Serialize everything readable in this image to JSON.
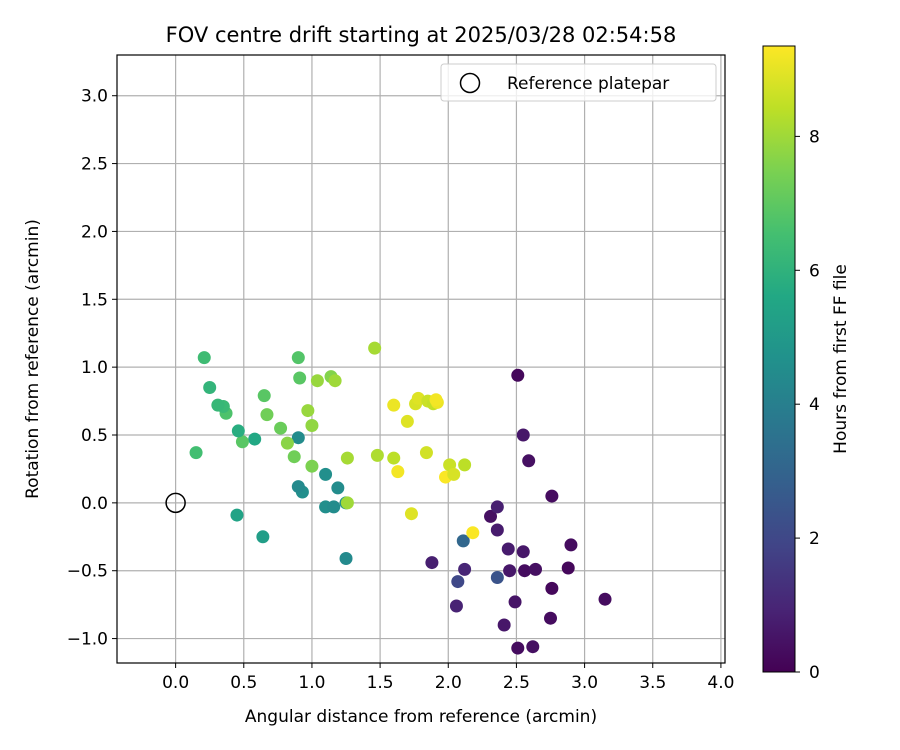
{
  "chart_data": {
    "type": "scatter",
    "title": "FOV centre drift starting at 2025/03/28 02:54:58",
    "xlabel": "Angular distance from reference (arcmin)",
    "ylabel": "Rotation from reference (arcmin)",
    "xlim": [
      -0.43,
      4.03
    ],
    "ylim": [
      -1.18,
      3.3
    ],
    "xticks": [
      0.0,
      0.5,
      1.0,
      1.5,
      2.0,
      2.5,
      3.0,
      3.5,
      4.0
    ],
    "xtick_labels": [
      "0.0",
      "0.5",
      "1.0",
      "1.5",
      "2.0",
      "2.5",
      "3.0",
      "3.5",
      "4.0"
    ],
    "yticks": [
      -1.0,
      -0.5,
      0.0,
      0.5,
      1.0,
      1.5,
      2.0,
      2.5,
      3.0
    ],
    "ytick_labels": [
      "−1.0",
      "−0.5",
      "0.0",
      "0.5",
      "1.0",
      "1.5",
      "2.0",
      "2.5",
      "3.0"
    ],
    "grid": true,
    "legend": {
      "label": "Reference platepar",
      "placement": "upper right"
    },
    "reference_point": {
      "x": 0.0,
      "y": 0.0
    },
    "colorbar": {
      "label": "Hours from first FF file",
      "min": 0,
      "max": 9.35,
      "ticks": [
        0,
        2,
        4,
        6,
        8
      ],
      "tick_labels": [
        "0",
        "2",
        "4",
        "6",
        "8"
      ],
      "colormap": "viridis"
    },
    "points": [
      {
        "x": 2.51,
        "y": -1.07,
        "c": 0.3
      },
      {
        "x": 2.62,
        "y": -1.06,
        "c": 0.4
      },
      {
        "x": 2.41,
        "y": -0.9,
        "c": 0.6
      },
      {
        "x": 2.75,
        "y": -0.85,
        "c": 0.3
      },
      {
        "x": 2.06,
        "y": -0.76,
        "c": 0.9
      },
      {
        "x": 2.49,
        "y": -0.73,
        "c": 0.5
      },
      {
        "x": 3.15,
        "y": -0.71,
        "c": 0.3
      },
      {
        "x": 2.76,
        "y": -0.63,
        "c": 0.2
      },
      {
        "x": 2.07,
        "y": -0.58,
        "c": 2.0
      },
      {
        "x": 2.36,
        "y": -0.55,
        "c": 2.4
      },
      {
        "x": 2.45,
        "y": -0.5,
        "c": 0.6
      },
      {
        "x": 2.56,
        "y": -0.5,
        "c": 0.3
      },
      {
        "x": 2.64,
        "y": -0.49,
        "c": 0.4
      },
      {
        "x": 2.88,
        "y": -0.48,
        "c": 0.2
      },
      {
        "x": 2.12,
        "y": -0.49,
        "c": 1.0
      },
      {
        "x": 1.88,
        "y": -0.44,
        "c": 0.8
      },
      {
        "x": 2.55,
        "y": -0.36,
        "c": 0.6
      },
      {
        "x": 2.44,
        "y": -0.34,
        "c": 0.7
      },
      {
        "x": 2.9,
        "y": -0.31,
        "c": 0.3
      },
      {
        "x": 2.11,
        "y": -0.28,
        "c": 3.1
      },
      {
        "x": 2.36,
        "y": -0.2,
        "c": 0.7
      },
      {
        "x": 2.31,
        "y": -0.1,
        "c": 0.4
      },
      {
        "x": 2.36,
        "y": -0.03,
        "c": 0.8
      },
      {
        "x": 2.76,
        "y": 0.05,
        "c": 0.3
      },
      {
        "x": 2.59,
        "y": 0.31,
        "c": 0.4
      },
      {
        "x": 2.55,
        "y": 0.5,
        "c": 0.6
      },
      {
        "x": 2.51,
        "y": 0.94,
        "c": 0.2
      },
      {
        "x": 2.18,
        "y": -0.22,
        "c": 9.3
      },
      {
        "x": 1.25,
        "y": -0.41,
        "c": 4.4
      },
      {
        "x": 0.64,
        "y": -0.25,
        "c": 5.2
      },
      {
        "x": 0.45,
        "y": -0.09,
        "c": 5.4
      },
      {
        "x": 1.1,
        "y": -0.03,
        "c": 4.6
      },
      {
        "x": 1.16,
        "y": -0.03,
        "c": 4.5
      },
      {
        "x": 1.25,
        "y": 0.0,
        "c": 4.7
      },
      {
        "x": 1.26,
        "y": 0.0,
        "c": 8.0
      },
      {
        "x": 0.93,
        "y": 0.08,
        "c": 4.6
      },
      {
        "x": 0.9,
        "y": 0.12,
        "c": 4.4
      },
      {
        "x": 1.19,
        "y": 0.11,
        "c": 4.5
      },
      {
        "x": 1.1,
        "y": 0.21,
        "c": 4.6
      },
      {
        "x": 1.0,
        "y": 0.27,
        "c": 7.5
      },
      {
        "x": 0.87,
        "y": 0.34,
        "c": 7.3
      },
      {
        "x": 0.15,
        "y": 0.37,
        "c": 6.5
      },
      {
        "x": 0.58,
        "y": 0.47,
        "c": 5.6
      },
      {
        "x": 0.9,
        "y": 0.48,
        "c": 4.5
      },
      {
        "x": 0.49,
        "y": 0.45,
        "c": 6.9
      },
      {
        "x": 0.46,
        "y": 0.53,
        "c": 5.8
      },
      {
        "x": 0.82,
        "y": 0.44,
        "c": 7.7
      },
      {
        "x": 0.77,
        "y": 0.55,
        "c": 7.2
      },
      {
        "x": 1.0,
        "y": 0.57,
        "c": 7.8
      },
      {
        "x": 0.97,
        "y": 0.68,
        "c": 7.9
      },
      {
        "x": 0.67,
        "y": 0.65,
        "c": 7.3
      },
      {
        "x": 0.37,
        "y": 0.66,
        "c": 6.7
      },
      {
        "x": 0.35,
        "y": 0.71,
        "c": 6.3
      },
      {
        "x": 0.31,
        "y": 0.72,
        "c": 6.2
      },
      {
        "x": 0.65,
        "y": 0.79,
        "c": 6.9
      },
      {
        "x": 0.25,
        "y": 0.85,
        "c": 6.1
      },
      {
        "x": 0.91,
        "y": 0.92,
        "c": 6.9
      },
      {
        "x": 0.21,
        "y": 1.07,
        "c": 6.4
      },
      {
        "x": 0.9,
        "y": 1.07,
        "c": 6.8
      },
      {
        "x": 1.04,
        "y": 0.9,
        "c": 7.9
      },
      {
        "x": 1.14,
        "y": 0.93,
        "c": 7.6
      },
      {
        "x": 1.17,
        "y": 0.9,
        "c": 8.0
      },
      {
        "x": 1.46,
        "y": 1.14,
        "c": 8.1
      },
      {
        "x": 1.26,
        "y": 0.33,
        "c": 8.1
      },
      {
        "x": 1.48,
        "y": 0.35,
        "c": 8.2
      },
      {
        "x": 1.6,
        "y": 0.33,
        "c": 8.4
      },
      {
        "x": 1.63,
        "y": 0.23,
        "c": 9.2
      },
      {
        "x": 1.73,
        "y": -0.08,
        "c": 8.9
      },
      {
        "x": 1.6,
        "y": 0.72,
        "c": 9.1
      },
      {
        "x": 1.7,
        "y": 0.6,
        "c": 8.9
      },
      {
        "x": 1.76,
        "y": 0.73,
        "c": 8.8
      },
      {
        "x": 1.78,
        "y": 0.77,
        "c": 8.9
      },
      {
        "x": 1.85,
        "y": 0.75,
        "c": 8.6
      },
      {
        "x": 1.89,
        "y": 0.73,
        "c": 8.5
      },
      {
        "x": 1.92,
        "y": 0.74,
        "c": 9.1
      },
      {
        "x": 1.91,
        "y": 0.76,
        "c": 9.2
      },
      {
        "x": 1.84,
        "y": 0.37,
        "c": 8.7
      },
      {
        "x": 1.98,
        "y": 0.19,
        "c": 9.3
      },
      {
        "x": 2.01,
        "y": 0.28,
        "c": 8.6
      },
      {
        "x": 2.04,
        "y": 0.21,
        "c": 8.8
      },
      {
        "x": 2.12,
        "y": 0.28,
        "c": 8.4
      }
    ]
  }
}
